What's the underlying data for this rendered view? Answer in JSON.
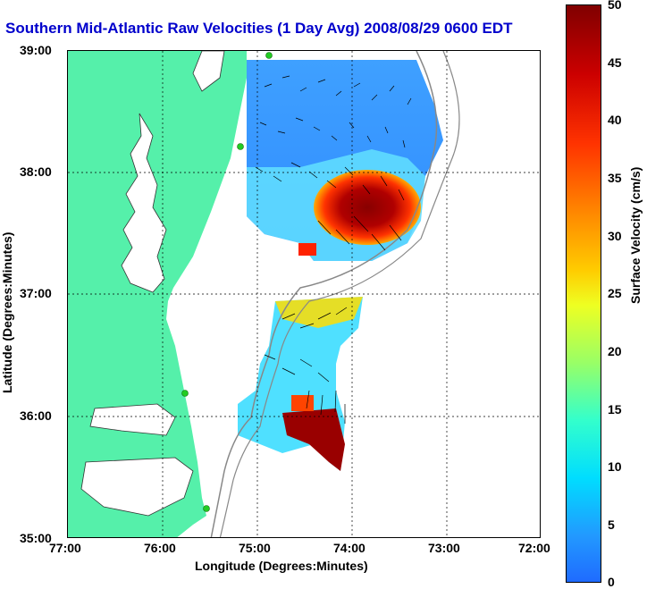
{
  "title": "Southern Mid-Atlantic Raw Velocities (1 Day Avg) 2008/08/29 0600 EDT",
  "xlabel": "Longitude (Degrees:Minutes)",
  "ylabel": "Latitude (Degrees:Minutes)",
  "x_ticks": [
    "77:00",
    "76:00",
    "75:00",
    "74:00",
    "73:00",
    "72:00"
  ],
  "y_ticks": [
    "39:00",
    "38:00",
    "37:00",
    "36:00",
    "35:00"
  ],
  "colorbar": {
    "label": "Surface Velocity (cm/s)",
    "ticks": [
      "50",
      "45",
      "40",
      "35",
      "30",
      "25",
      "20",
      "15",
      "10",
      "5",
      "0"
    ],
    "min": 0,
    "max": 50
  },
  "colors": {
    "land": "#55f0aa",
    "title": "#0000cc",
    "bathymetry": "#888888",
    "station": "#22cc22"
  }
}
